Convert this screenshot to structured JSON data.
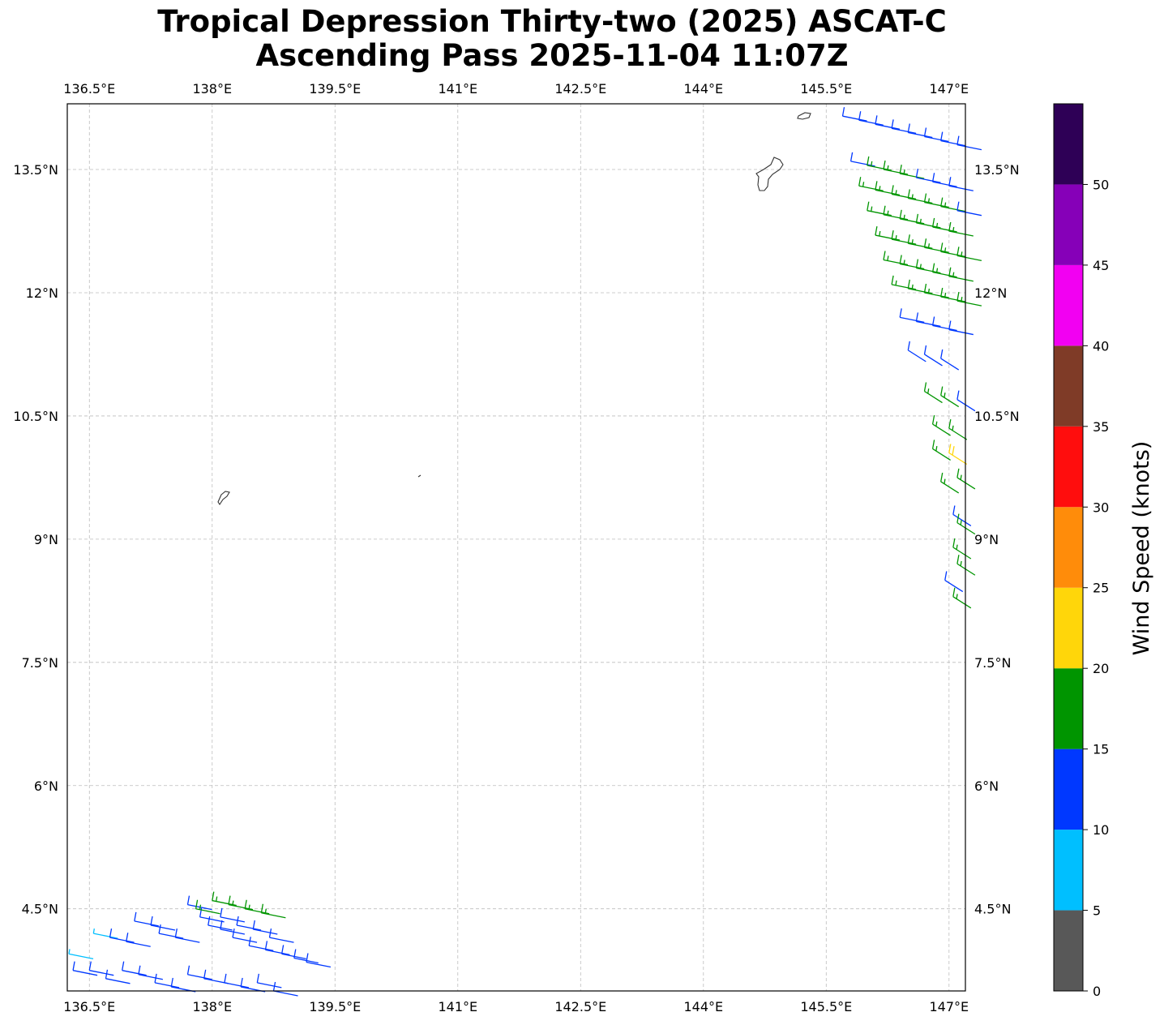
{
  "title": {
    "line1": "Tropical Depression Thirty-two (2025) ASCAT-C",
    "line2": "Ascending Pass 2025-11-04 11:07Z"
  },
  "map": {
    "lon_range": [
      136.23,
      147.2
    ],
    "lat_range": [
      3.5,
      14.3
    ],
    "lon_ticks": [
      136.5,
      138,
      139.5,
      141,
      142.5,
      144,
      145.5,
      147
    ],
    "lon_tick_labels": [
      "136.5°E",
      "138°E",
      "139.5°E",
      "141°E",
      "142.5°E",
      "144°E",
      "145.5°E",
      "147°E"
    ],
    "lat_ticks": [
      4.5,
      6,
      7.5,
      9,
      10.5,
      12,
      13.5
    ],
    "lat_tick_labels": [
      "4.5°N",
      "6°N",
      "7.5°N",
      "9°N",
      "10.5°N",
      "12°N",
      "13.5°N"
    ],
    "grid": true,
    "coastline_color": "#333333"
  },
  "colorbar": {
    "label": "Wind Speed (knots)",
    "bounds": [
      0,
      5,
      10,
      15,
      20,
      25,
      30,
      35,
      40,
      45,
      50,
      55
    ],
    "tick_labels": [
      "0",
      "5",
      "10",
      "15",
      "20",
      "25",
      "30",
      "35",
      "40",
      "45",
      "50"
    ],
    "colors": [
      "#585858",
      "#00bfff",
      "#0038ff",
      "#009500",
      "#ffd60a",
      "#ff8c0a",
      "#ff0d0d",
      "#7f3b27",
      "#f200f2",
      "#8600b8",
      "#2e0056"
    ]
  },
  "chart_data": {
    "type": "wind-barbs",
    "units": "knots",
    "swaths": [
      {
        "lon": [
          136.25,
          136.55,
          136.75,
          136.95,
          137.05,
          137.25,
          137.35,
          137.55,
          137.7,
          137.85,
          137.95,
          138.1,
          138.25,
          138.45,
          138.65,
          138.85,
          139.0,
          139.15,
          138.0,
          138.2,
          138.4,
          138.6,
          137.8,
          138.1,
          138.3,
          138.5,
          138.7,
          136.3,
          136.5,
          136.7,
          136.9,
          137.1,
          137.3,
          137.5,
          137.7,
          137.9,
          138.15,
          138.35,
          138.55,
          138.75
        ],
        "lat": [
          3.95,
          4.2,
          4.15,
          4.1,
          4.35,
          4.3,
          4.2,
          4.15,
          4.55,
          4.4,
          4.3,
          4.25,
          4.15,
          4.05,
          4.0,
          3.95,
          3.9,
          3.85,
          4.6,
          4.55,
          4.5,
          4.45,
          4.5,
          4.4,
          4.3,
          4.25,
          4.15,
          3.75,
          3.75,
          3.65,
          3.75,
          3.7,
          3.6,
          3.55,
          3.7,
          3.65,
          3.6,
          3.55,
          3.6,
          3.5
        ],
        "speed": [
          8,
          8,
          12,
          12,
          12,
          12,
          12,
          12,
          12,
          12,
          12,
          12,
          12,
          12,
          12,
          12,
          12,
          12,
          17,
          17,
          17,
          17,
          17,
          12,
          12,
          12,
          12,
          12,
          12,
          12,
          12,
          12,
          12,
          12,
          12,
          12,
          12,
          12,
          12,
          12
        ]
      },
      {
        "lon": [
          145.7,
          145.9,
          146.1,
          146.3,
          146.5,
          146.7,
          146.9,
          147.1,
          145.8,
          146.0,
          146.2,
          146.4,
          146.6,
          146.8,
          147.0,
          145.9,
          146.1,
          146.3,
          146.5,
          146.7,
          146.9,
          147.1,
          146.0,
          146.2,
          146.4,
          146.6,
          146.8,
          147.0,
          146.1,
          146.3,
          146.5,
          146.7,
          146.9,
          147.1,
          146.2,
          146.4,
          146.6,
          146.8,
          147.0,
          146.3,
          146.5,
          146.7,
          146.9,
          147.1,
          146.4,
          146.6,
          146.8,
          147.0,
          146.5,
          146.7,
          146.9,
          146.7,
          146.9,
          147.1,
          146.8,
          147.0,
          146.8,
          147.0,
          147.1,
          146.9,
          147.05,
          147.1,
          147.05,
          147.1,
          146.95,
          147.05
        ],
        "lat": [
          14.15,
          14.1,
          14.05,
          14.0,
          13.95,
          13.9,
          13.85,
          13.8,
          13.6,
          13.55,
          13.5,
          13.45,
          13.4,
          13.35,
          13.3,
          13.3,
          13.25,
          13.2,
          13.15,
          13.1,
          13.05,
          13.0,
          13.0,
          12.95,
          12.9,
          12.85,
          12.8,
          12.75,
          12.7,
          12.65,
          12.6,
          12.55,
          12.5,
          12.45,
          12.4,
          12.35,
          12.3,
          12.25,
          12.2,
          12.1,
          12.05,
          12.0,
          11.95,
          11.9,
          11.7,
          11.65,
          11.6,
          11.55,
          11.3,
          11.25,
          11.2,
          10.8,
          10.75,
          10.7,
          10.4,
          10.35,
          10.1,
          10.05,
          9.75,
          9.7,
          9.3,
          9.2,
          8.9,
          8.7,
          8.5,
          8.3
        ],
        "speed": [
          12,
          12,
          12,
          12,
          12,
          12,
          12,
          12,
          12,
          17,
          17,
          17,
          12,
          12,
          12,
          17,
          17,
          17,
          17,
          17,
          17,
          12,
          17,
          17,
          17,
          17,
          17,
          17,
          17,
          17,
          17,
          17,
          17,
          17,
          17,
          17,
          17,
          17,
          17,
          17,
          17,
          17,
          17,
          17,
          12,
          12,
          12,
          12,
          12,
          12,
          12,
          17,
          17,
          12,
          17,
          17,
          17,
          22,
          17,
          17,
          12,
          17,
          17,
          17,
          12,
          17
        ]
      }
    ]
  }
}
